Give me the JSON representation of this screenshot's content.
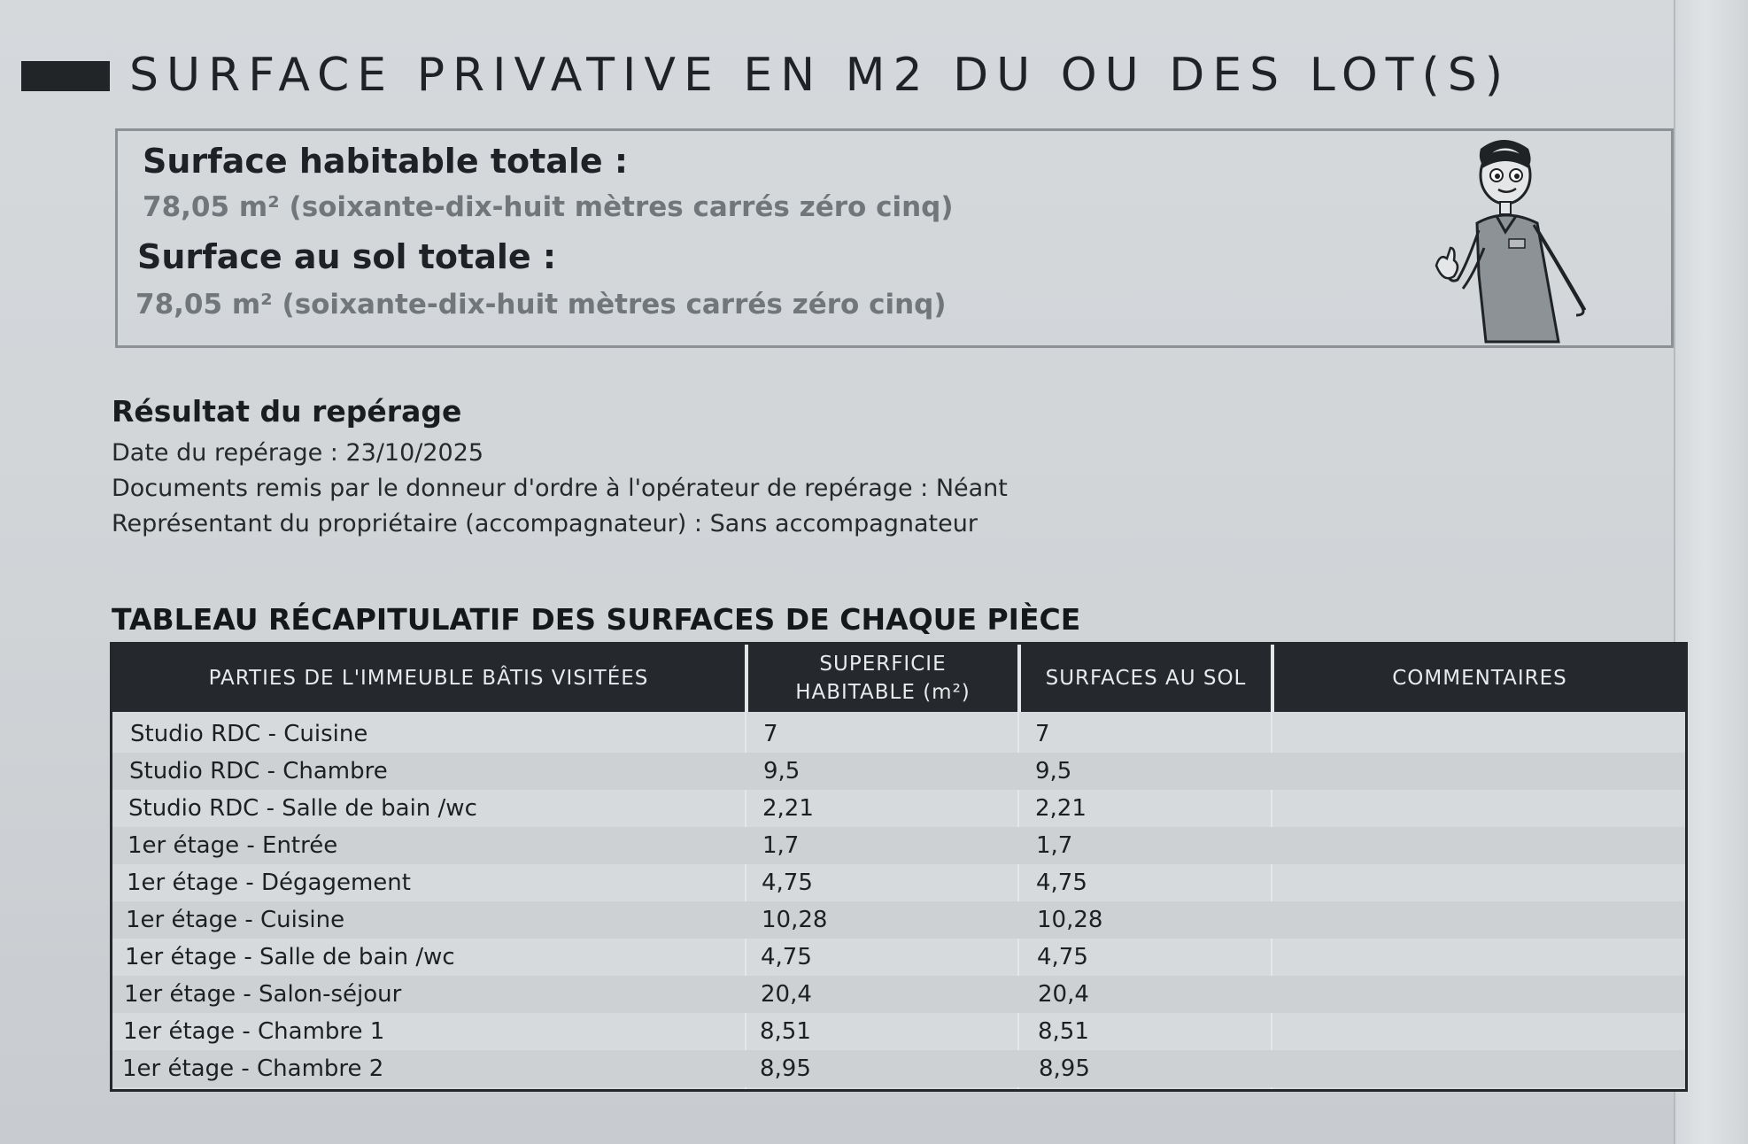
{
  "header": {
    "title": "SURFACE PRIVATIVE EN M2 DU OU DES LOT(S)"
  },
  "summary": {
    "habitable_label": "Surface habitable totale :",
    "habitable_value": "78,05 m² (soixante-dix-huit mètres carrés zéro cinq)",
    "sol_label": "Surface au sol totale :",
    "sol_value": "78,05 m² (soixante-dix-huit mètres carrés zéro cinq)",
    "mascot_icon": "technician-mascot-icon"
  },
  "results": {
    "title": "Résultat du repérage",
    "date_line": "Date du repérage : 23/10/2025",
    "documents_line": "Documents remis par le donneur d'ordre à l'opérateur de repérage : Néant",
    "representative_line": "Représentant du propriétaire (accompagnateur) : Sans accompagnateur"
  },
  "table": {
    "title": "TABLEAU RÉCAPITULATIF DES SURFACES DE CHAQUE PIÈCE",
    "headers": {
      "parties": "PARTIES DE L'IMMEUBLE BÂTIS VISITÉES",
      "superficie_line1": "SUPERFICIE",
      "superficie_line2": "HABITABLE (m²)",
      "surfaces_sol": "SURFACES AU SOL",
      "commentaires": "COMMENTAIRES"
    },
    "rows": [
      {
        "piece": "Studio RDC - Cuisine",
        "habitable": "7",
        "sol": "7",
        "commentaire": ""
      },
      {
        "piece": "Studio RDC - Chambre",
        "habitable": "9,5",
        "sol": "9,5",
        "commentaire": ""
      },
      {
        "piece": "Studio RDC - Salle de bain /wc",
        "habitable": "2,21",
        "sol": "2,21",
        "commentaire": ""
      },
      {
        "piece": "1er étage - Entrée",
        "habitable": "1,7",
        "sol": "1,7",
        "commentaire": ""
      },
      {
        "piece": "1er étage - Dégagement",
        "habitable": "4,75",
        "sol": "4,75",
        "commentaire": ""
      },
      {
        "piece": "1er étage - Cuisine",
        "habitable": "10,28",
        "sol": "10,28",
        "commentaire": ""
      },
      {
        "piece": "1er étage - Salle de bain /wc",
        "habitable": "4,75",
        "sol": "4,75",
        "commentaire": ""
      },
      {
        "piece": "1er étage - Salon-séjour",
        "habitable": "20,4",
        "sol": "20,4",
        "commentaire": ""
      },
      {
        "piece": "1er étage - Chambre 1",
        "habitable": "8,51",
        "sol": "8,51",
        "commentaire": ""
      },
      {
        "piece": "1er étage - Chambre 2",
        "habitable": "8,95",
        "sol": "8,95",
        "commentaire": ""
      }
    ]
  }
}
